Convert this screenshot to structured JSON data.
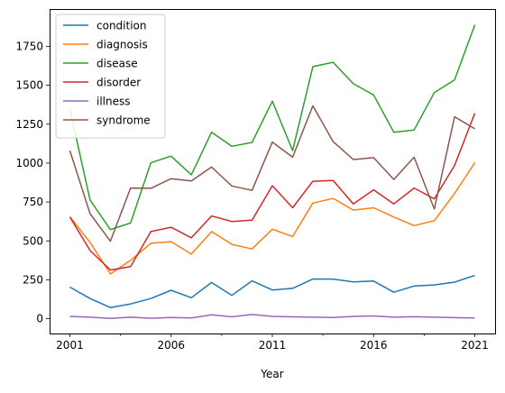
{
  "chart_data": {
    "type": "line",
    "xlabel": "Year",
    "ylabel": "",
    "x": [
      2001,
      2002,
      2003,
      2004,
      2005,
      2006,
      2007,
      2008,
      2009,
      2010,
      2011,
      2012,
      2013,
      2014,
      2015,
      2016,
      2017,
      2018,
      2019,
      2020,
      2021
    ],
    "x_ticks": [
      2001,
      2006,
      2011,
      2016,
      2021
    ],
    "x_tick_labels": [
      "2001",
      "2006",
      "2011",
      "2016",
      "2021"
    ],
    "ylim": [
      -95,
      1990
    ],
    "y_ticks": [
      0,
      250,
      500,
      750,
      1000,
      1250,
      1500,
      1750
    ],
    "y_tick_labels": [
      "0",
      "250",
      "500",
      "750",
      "1000",
      "1250",
      "1500",
      "1750"
    ],
    "legend_position": "top-left",
    "grid": false,
    "series": [
      {
        "name": "condition",
        "color": "#1f77b4",
        "values": [
          203,
          130,
          72,
          95,
          130,
          183,
          135,
          233,
          150,
          243,
          185,
          195,
          255,
          255,
          237,
          242,
          170,
          210,
          217,
          235,
          278
        ]
      },
      {
        "name": "diagnosis",
        "color": "#ff7f0e",
        "values": [
          655,
          490,
          288,
          375,
          485,
          495,
          415,
          560,
          478,
          448,
          575,
          528,
          743,
          773,
          698,
          713,
          653,
          598,
          630,
          805,
          1002
        ]
      },
      {
        "name": "disease",
        "color": "#2ca02c",
        "values": [
          1345,
          763,
          573,
          615,
          1002,
          1045,
          925,
          1198,
          1108,
          1133,
          1398,
          1080,
          1620,
          1648,
          1510,
          1438,
          1198,
          1213,
          1453,
          1535,
          1888
        ]
      },
      {
        "name": "disorder",
        "color": "#d62728",
        "values": [
          653,
          438,
          313,
          335,
          560,
          588,
          520,
          660,
          625,
          633,
          855,
          713,
          883,
          888,
          738,
          828,
          738,
          840,
          770,
          985,
          1320
        ]
      },
      {
        "name": "illness",
        "color": "#9467bd",
        "values": [
          15,
          10,
          2,
          10,
          3,
          8,
          5,
          25,
          12,
          27,
          15,
          12,
          10,
          8,
          15,
          18,
          10,
          13,
          10,
          7,
          5
        ]
      },
      {
        "name": "syndrome",
        "color": "#8c564b",
        "values": [
          1080,
          675,
          498,
          840,
          838,
          900,
          885,
          975,
          853,
          825,
          1135,
          1038,
          1368,
          1138,
          1023,
          1035,
          895,
          1038,
          705,
          1298,
          1220
        ]
      }
    ]
  }
}
